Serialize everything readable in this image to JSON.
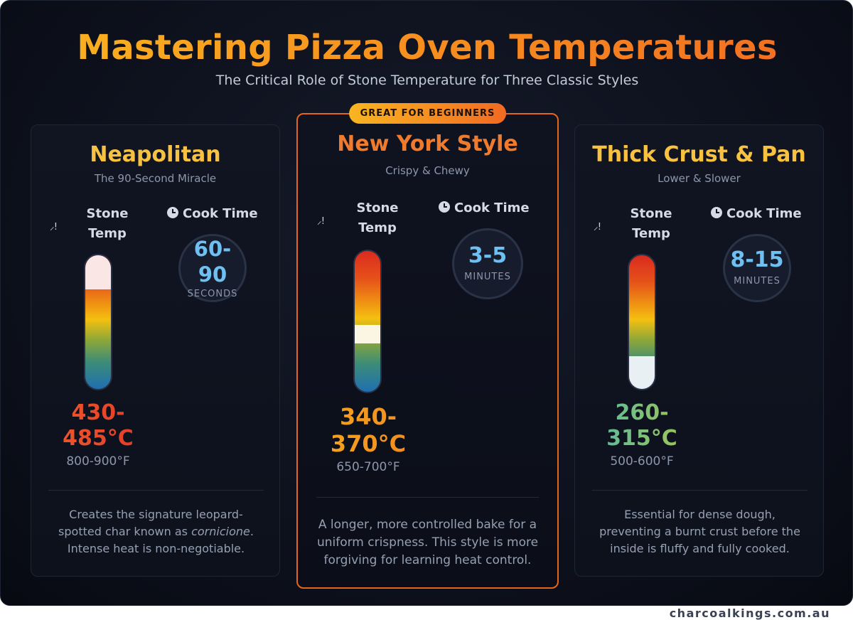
{
  "title": "Mastering Pizza Oven Temperatures",
  "subtitle": "The Critical Role of Stone Temperature for Three Classic Styles",
  "stone_temp_label_1": "Stone",
  "stone_temp_label_2": "Temp",
  "cook_time_label": "Cook Time",
  "cards": [
    {
      "name": "Neapolitan",
      "tagline": "The 90-Second Miracle",
      "temp_c_line1": "430-",
      "temp_c_line2": "485°C",
      "temp_f": "800-900°F",
      "cook_time": "60-",
      "cook_time_2": "90",
      "cook_unit": "SECONDS",
      "description_pre": "Creates the signature leopard-spotted char known as ",
      "description_em": "cornicione",
      "description_post": ". Intense heat is non-negotiable.",
      "temp_color_start": "#f05a2a",
      "temp_color_end": "#e0392a"
    },
    {
      "name": "New York Style",
      "badge": "GREAT FOR BEGINNERS",
      "tagline": "Crispy & Chewy",
      "temp_c_line1": "340-",
      "temp_c_line2": "370°C",
      "temp_f": "650-700°F",
      "cook_time": "3-5",
      "cook_unit": "MINUTES",
      "description": "A longer, more controlled bake for a uniform crispness. This style is more forgiving for learning heat control.",
      "temp_color_start": "#f6a51d",
      "temp_color_end": "#f08a20"
    },
    {
      "name": "Thick Crust & Pan",
      "tagline": "Lower & Slower",
      "temp_c_line1": "260-",
      "temp_c_line2": "315°C",
      "temp_f": "500-600°F",
      "cook_time": "8-15",
      "cook_unit": "MINUTES",
      "description": "Essential for dense dough, preventing a burnt crust before the inside is fluffy and fully cooked.",
      "temp_color_start": "#56b8a8",
      "temp_color_end": "#a6c84a"
    }
  ],
  "footer": "charcoalkings.com.au",
  "colors": {
    "accent_orange": "#f26a22",
    "accent_yellow": "#f8c140",
    "timer_blue": "#6ec0f2",
    "background": "#0e121e"
  }
}
